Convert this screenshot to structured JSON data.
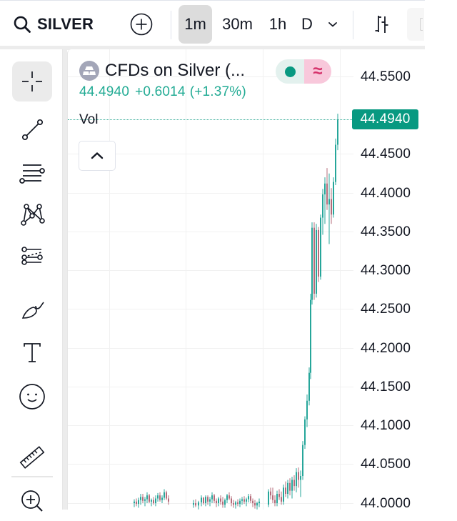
{
  "topbar": {
    "symbol": "SILVER",
    "search_icon": "search-icon",
    "add_icon": "plus-circle-icon",
    "intervals": [
      {
        "label": "1m",
        "active": true
      },
      {
        "label": "30m",
        "active": false
      },
      {
        "label": "1h",
        "active": false
      },
      {
        "label": "D",
        "active": false
      }
    ],
    "interval_dropdown_icon": "chevron-down-icon",
    "chart_type_icon": "bar-chart-icon"
  },
  "toolbar": {
    "tools": [
      {
        "name": "crosshair",
        "icon": "crosshair-icon",
        "active": true
      },
      {
        "name": "trend-line",
        "icon": "trend-line-icon",
        "active": false
      },
      {
        "name": "fib-retracement",
        "icon": "fib-lines-icon",
        "active": false
      },
      {
        "name": "patterns",
        "icon": "xabcd-pattern-icon",
        "active": false
      },
      {
        "name": "prediction",
        "icon": "forecast-lines-icon",
        "active": false
      },
      {
        "name": "brush",
        "icon": "brush-icon",
        "active": false
      },
      {
        "name": "text",
        "icon": "text-icon",
        "active": false
      },
      {
        "name": "emoji",
        "icon": "smiley-icon",
        "active": false
      },
      {
        "name": "measure",
        "icon": "ruler-icon",
        "active": false
      },
      {
        "name": "zoom-in",
        "icon": "zoom-in-icon",
        "active": false
      }
    ]
  },
  "legend": {
    "title": "CFDs on Silver (...",
    "last": "44.4940",
    "change": "+0.6014",
    "change_pct": "(+1.37%)",
    "market_status_color": "#089981",
    "indicator_icon": "≈",
    "vol_label": "Vol",
    "collapse_icon": "chevron-up-icon"
  },
  "price_axis": {
    "labels": [
      "44.5500",
      "44.4500",
      "44.4000",
      "44.3500",
      "44.3000",
      "44.2500",
      "44.2000",
      "44.1500",
      "44.1000",
      "44.0500",
      "44.0000"
    ],
    "last_price": "44.4940",
    "last_price_color": "#089981"
  },
  "colors": {
    "up": "#26a69a",
    "down": "#b56b7a",
    "accent": "#089981"
  },
  "chart_data": {
    "type": "candlestick",
    "symbol": "SILVER",
    "interval": "1m",
    "ylim": [
      44.0,
      44.55
    ],
    "yticks": [
      44.0,
      44.05,
      44.1,
      44.15,
      44.2,
      44.25,
      44.3,
      44.35,
      44.4,
      44.45,
      44.5,
      44.55
    ],
    "last_price": 44.494,
    "candles": [
      {
        "x": 187,
        "o": 44.0,
        "h": 44.005,
        "l": 43.995,
        "c": 44.002
      },
      {
        "x": 190,
        "o": 44.002,
        "h": 44.006,
        "l": 43.996,
        "c": 43.999
      },
      {
        "x": 193,
        "o": 43.999,
        "h": 44.007,
        "l": 43.994,
        "c": 44.004
      },
      {
        "x": 196,
        "o": 44.004,
        "h": 44.012,
        "l": 43.998,
        "c": 44.008
      },
      {
        "x": 199,
        "o": 44.008,
        "h": 44.012,
        "l": 44.0,
        "c": 44.003
      },
      {
        "x": 202,
        "o": 44.003,
        "h": 44.008,
        "l": 43.996,
        "c": 44.005
      },
      {
        "x": 205,
        "o": 44.005,
        "h": 44.014,
        "l": 44.0,
        "c": 44.01
      },
      {
        "x": 208,
        "o": 44.01,
        "h": 44.012,
        "l": 44.0,
        "c": 44.002
      },
      {
        "x": 211,
        "o": 44.002,
        "h": 44.006,
        "l": 43.996,
        "c": 44.004
      },
      {
        "x": 214,
        "o": 44.004,
        "h": 44.008,
        "l": 43.998,
        "c": 44.0
      },
      {
        "x": 217,
        "o": 44.0,
        "h": 44.01,
        "l": 43.996,
        "c": 44.006
      },
      {
        "x": 220,
        "o": 44.006,
        "h": 44.013,
        "l": 44.002,
        "c": 44.01
      },
      {
        "x": 223,
        "o": 44.01,
        "h": 44.014,
        "l": 44.002,
        "c": 44.004
      },
      {
        "x": 226,
        "o": 44.004,
        "h": 44.01,
        "l": 44.0,
        "c": 44.007
      },
      {
        "x": 229,
        "o": 44.007,
        "h": 44.018,
        "l": 44.004,
        "c": 44.014
      },
      {
        "x": 232,
        "o": 44.014,
        "h": 44.016,
        "l": 44.004,
        "c": 44.006
      },
      {
        "x": 235,
        "o": 44.006,
        "h": 44.01,
        "l": 43.998,
        "c": 44.002
      },
      {
        "x": 270,
        "o": 43.998,
        "h": 44.004,
        "l": 43.994,
        "c": 44.0
      },
      {
        "x": 273,
        "o": 44.0,
        "h": 44.005,
        "l": 43.995,
        "c": 43.997
      },
      {
        "x": 277,
        "o": 43.997,
        "h": 44.003,
        "l": 43.992,
        "c": 44.001
      },
      {
        "x": 281,
        "o": 44.001,
        "h": 44.01,
        "l": 43.996,
        "c": 44.007
      },
      {
        "x": 284,
        "o": 44.007,
        "h": 44.008,
        "l": 43.998,
        "c": 44.0
      },
      {
        "x": 287,
        "o": 44.0,
        "h": 44.01,
        "l": 43.996,
        "c": 44.008
      },
      {
        "x": 290,
        "o": 44.008,
        "h": 44.01,
        "l": 43.998,
        "c": 44.002
      },
      {
        "x": 293,
        "o": 44.002,
        "h": 44.008,
        "l": 43.996,
        "c": 44.005
      },
      {
        "x": 296,
        "o": 44.005,
        "h": 44.014,
        "l": 44.0,
        "c": 44.01
      },
      {
        "x": 299,
        "o": 44.01,
        "h": 44.012,
        "l": 44.0,
        "c": 44.003
      },
      {
        "x": 302,
        "o": 44.003,
        "h": 44.006,
        "l": 43.995,
        "c": 44.0
      },
      {
        "x": 305,
        "o": 44.0,
        "h": 44.008,
        "l": 43.996,
        "c": 44.006
      },
      {
        "x": 308,
        "o": 44.006,
        "h": 44.01,
        "l": 43.998,
        "c": 44.002
      },
      {
        "x": 311,
        "o": 44.002,
        "h": 44.008,
        "l": 43.994,
        "c": 43.998
      },
      {
        "x": 314,
        "o": 43.998,
        "h": 44.006,
        "l": 43.994,
        "c": 44.004
      },
      {
        "x": 317,
        "o": 44.004,
        "h": 44.012,
        "l": 44.0,
        "c": 44.01
      },
      {
        "x": 320,
        "o": 44.01,
        "h": 44.014,
        "l": 44.004,
        "c": 44.006
      },
      {
        "x": 323,
        "o": 44.006,
        "h": 44.009,
        "l": 43.996,
        "c": 44.0
      },
      {
        "x": 326,
        "o": 44.0,
        "h": 44.004,
        "l": 43.994,
        "c": 43.998
      },
      {
        "x": 329,
        "o": 43.998,
        "h": 44.003,
        "l": 43.993,
        "c": 44.001
      },
      {
        "x": 332,
        "o": 44.001,
        "h": 44.005,
        "l": 43.996,
        "c": 43.999
      },
      {
        "x": 335,
        "o": 43.999,
        "h": 44.006,
        "l": 43.995,
        "c": 44.003
      },
      {
        "x": 338,
        "o": 44.003,
        "h": 44.008,
        "l": 43.998,
        "c": 44.005
      },
      {
        "x": 341,
        "o": 44.005,
        "h": 44.009,
        "l": 43.999,
        "c": 44.002
      },
      {
        "x": 344,
        "o": 44.002,
        "h": 44.007,
        "l": 43.996,
        "c": 44.005
      },
      {
        "x": 347,
        "o": 44.005,
        "h": 44.012,
        "l": 44.001,
        "c": 44.009
      },
      {
        "x": 350,
        "o": 44.009,
        "h": 44.012,
        "l": 44.0,
        "c": 44.003
      },
      {
        "x": 353,
        "o": 44.003,
        "h": 44.006,
        "l": 43.995,
        "c": 44.0
      },
      {
        "x": 356,
        "o": 44.0,
        "h": 44.004,
        "l": 43.993,
        "c": 43.997
      },
      {
        "x": 359,
        "o": 43.997,
        "h": 44.002,
        "l": 43.992,
        "c": 44.0
      },
      {
        "x": 362,
        "o": 44.0,
        "h": 44.006,
        "l": 43.995,
        "c": 44.002
      },
      {
        "x": 375,
        "o": 43.998,
        "h": 44.018,
        "l": 43.995,
        "c": 44.015
      },
      {
        "x": 378,
        "o": 44.015,
        "h": 44.02,
        "l": 44.005,
        "c": 44.01
      },
      {
        "x": 381,
        "o": 44.01,
        "h": 44.02,
        "l": 44.0,
        "c": 44.004
      },
      {
        "x": 384,
        "o": 44.004,
        "h": 44.01,
        "l": 43.996,
        "c": 44.0
      },
      {
        "x": 387,
        "o": 44.0,
        "h": 44.016,
        "l": 43.996,
        "c": 44.012
      },
      {
        "x": 390,
        "o": 44.012,
        "h": 44.018,
        "l": 44.004,
        "c": 44.008
      },
      {
        "x": 393,
        "o": 44.008,
        "h": 44.015,
        "l": 43.998,
        "c": 44.002
      },
      {
        "x": 396,
        "o": 44.002,
        "h": 44.024,
        "l": 43.998,
        "c": 44.02
      },
      {
        "x": 399,
        "o": 44.02,
        "h": 44.028,
        "l": 44.008,
        "c": 44.012
      },
      {
        "x": 402,
        "o": 44.012,
        "h": 44.03,
        "l": 44.006,
        "c": 44.026
      },
      {
        "x": 405,
        "o": 44.026,
        "h": 44.032,
        "l": 44.01,
        "c": 44.016
      },
      {
        "x": 408,
        "o": 44.016,
        "h": 44.034,
        "l": 44.006,
        "c": 44.03
      },
      {
        "x": 411,
        "o": 44.03,
        "h": 44.036,
        "l": 44.016,
        "c": 44.022
      },
      {
        "x": 414,
        "o": 44.022,
        "h": 44.045,
        "l": 44.014,
        "c": 44.04
      },
      {
        "x": 417,
        "o": 44.04,
        "h": 44.046,
        "l": 44.02,
        "c": 44.03
      },
      {
        "x": 420,
        "o": 44.03,
        "h": 44.042,
        "l": 44.008,
        "c": 44.035
      },
      {
        "x": 423,
        "o": 44.035,
        "h": 44.08,
        "l": 44.03,
        "c": 44.075
      },
      {
        "x": 426,
        "o": 44.075,
        "h": 44.112,
        "l": 44.07,
        "c": 44.108
      },
      {
        "x": 429,
        "o": 44.108,
        "h": 44.14,
        "l": 44.098,
        "c": 44.132
      },
      {
        "x": 432,
        "o": 44.132,
        "h": 44.175,
        "l": 44.126,
        "c": 44.168
      },
      {
        "x": 434,
        "o": 44.168,
        "h": 44.27,
        "l": 44.16,
        "c": 44.262
      },
      {
        "x": 436,
        "o": 44.262,
        "h": 44.362,
        "l": 44.256,
        "c": 44.355
      },
      {
        "x": 439,
        "o": 44.355,
        "h": 44.362,
        "l": 44.262,
        "c": 44.27
      },
      {
        "x": 442,
        "o": 44.27,
        "h": 44.36,
        "l": 44.265,
        "c": 44.352
      },
      {
        "x": 445,
        "o": 44.352,
        "h": 44.356,
        "l": 44.285,
        "c": 44.292
      },
      {
        "x": 448,
        "o": 44.292,
        "h": 44.372,
        "l": 44.288,
        "c": 44.368
      },
      {
        "x": 451,
        "o": 44.368,
        "h": 44.405,
        "l": 44.346,
        "c": 44.398
      },
      {
        "x": 454,
        "o": 44.398,
        "h": 44.42,
        "l": 44.36,
        "c": 44.412
      },
      {
        "x": 457,
        "o": 44.412,
        "h": 44.432,
        "l": 44.378,
        "c": 44.385
      },
      {
        "x": 460,
        "o": 44.385,
        "h": 44.425,
        "l": 44.334,
        "c": 44.392
      },
      {
        "x": 463,
        "o": 44.392,
        "h": 44.406,
        "l": 44.36,
        "c": 44.372
      },
      {
        "x": 466,
        "o": 44.372,
        "h": 44.42,
        "l": 44.368,
        "c": 44.414
      },
      {
        "x": 469,
        "o": 44.414,
        "h": 44.47,
        "l": 44.41,
        "c": 44.462
      },
      {
        "x": 472,
        "o": 44.462,
        "h": 44.502,
        "l": 44.455,
        "c": 44.494
      }
    ]
  }
}
